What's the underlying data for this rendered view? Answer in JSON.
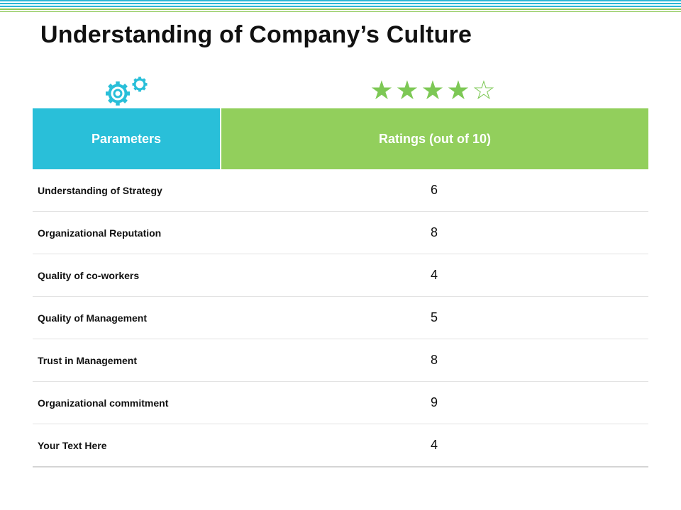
{
  "slide": {
    "title": "Understanding of Company’s Culture"
  },
  "icons": {
    "left": "gears-icon",
    "right": "star-rating-icon"
  },
  "rating_stars": {
    "filled": 4,
    "total": 5,
    "filled_glyph": "★",
    "empty_glyph": "☆"
  },
  "colors": {
    "params_header": "#29bfd9",
    "ratings_header": "#92cf5c",
    "gears": "#29bfd9",
    "stars": "#7dc855"
  },
  "table": {
    "headers": {
      "parameters": "Parameters",
      "ratings": "Ratings (out of 10)"
    },
    "rows": [
      {
        "parameter": "Understanding of Strategy",
        "rating": "6"
      },
      {
        "parameter": "Organizational Reputation",
        "rating": "8"
      },
      {
        "parameter": "Quality of co-workers",
        "rating": "4"
      },
      {
        "parameter": "Quality of Management",
        "rating": "5"
      },
      {
        "parameter": "Trust in Management",
        "rating": "8"
      },
      {
        "parameter": "Organizational commitment",
        "rating": "9"
      },
      {
        "parameter": "Your Text Here",
        "rating": "4"
      }
    ]
  }
}
